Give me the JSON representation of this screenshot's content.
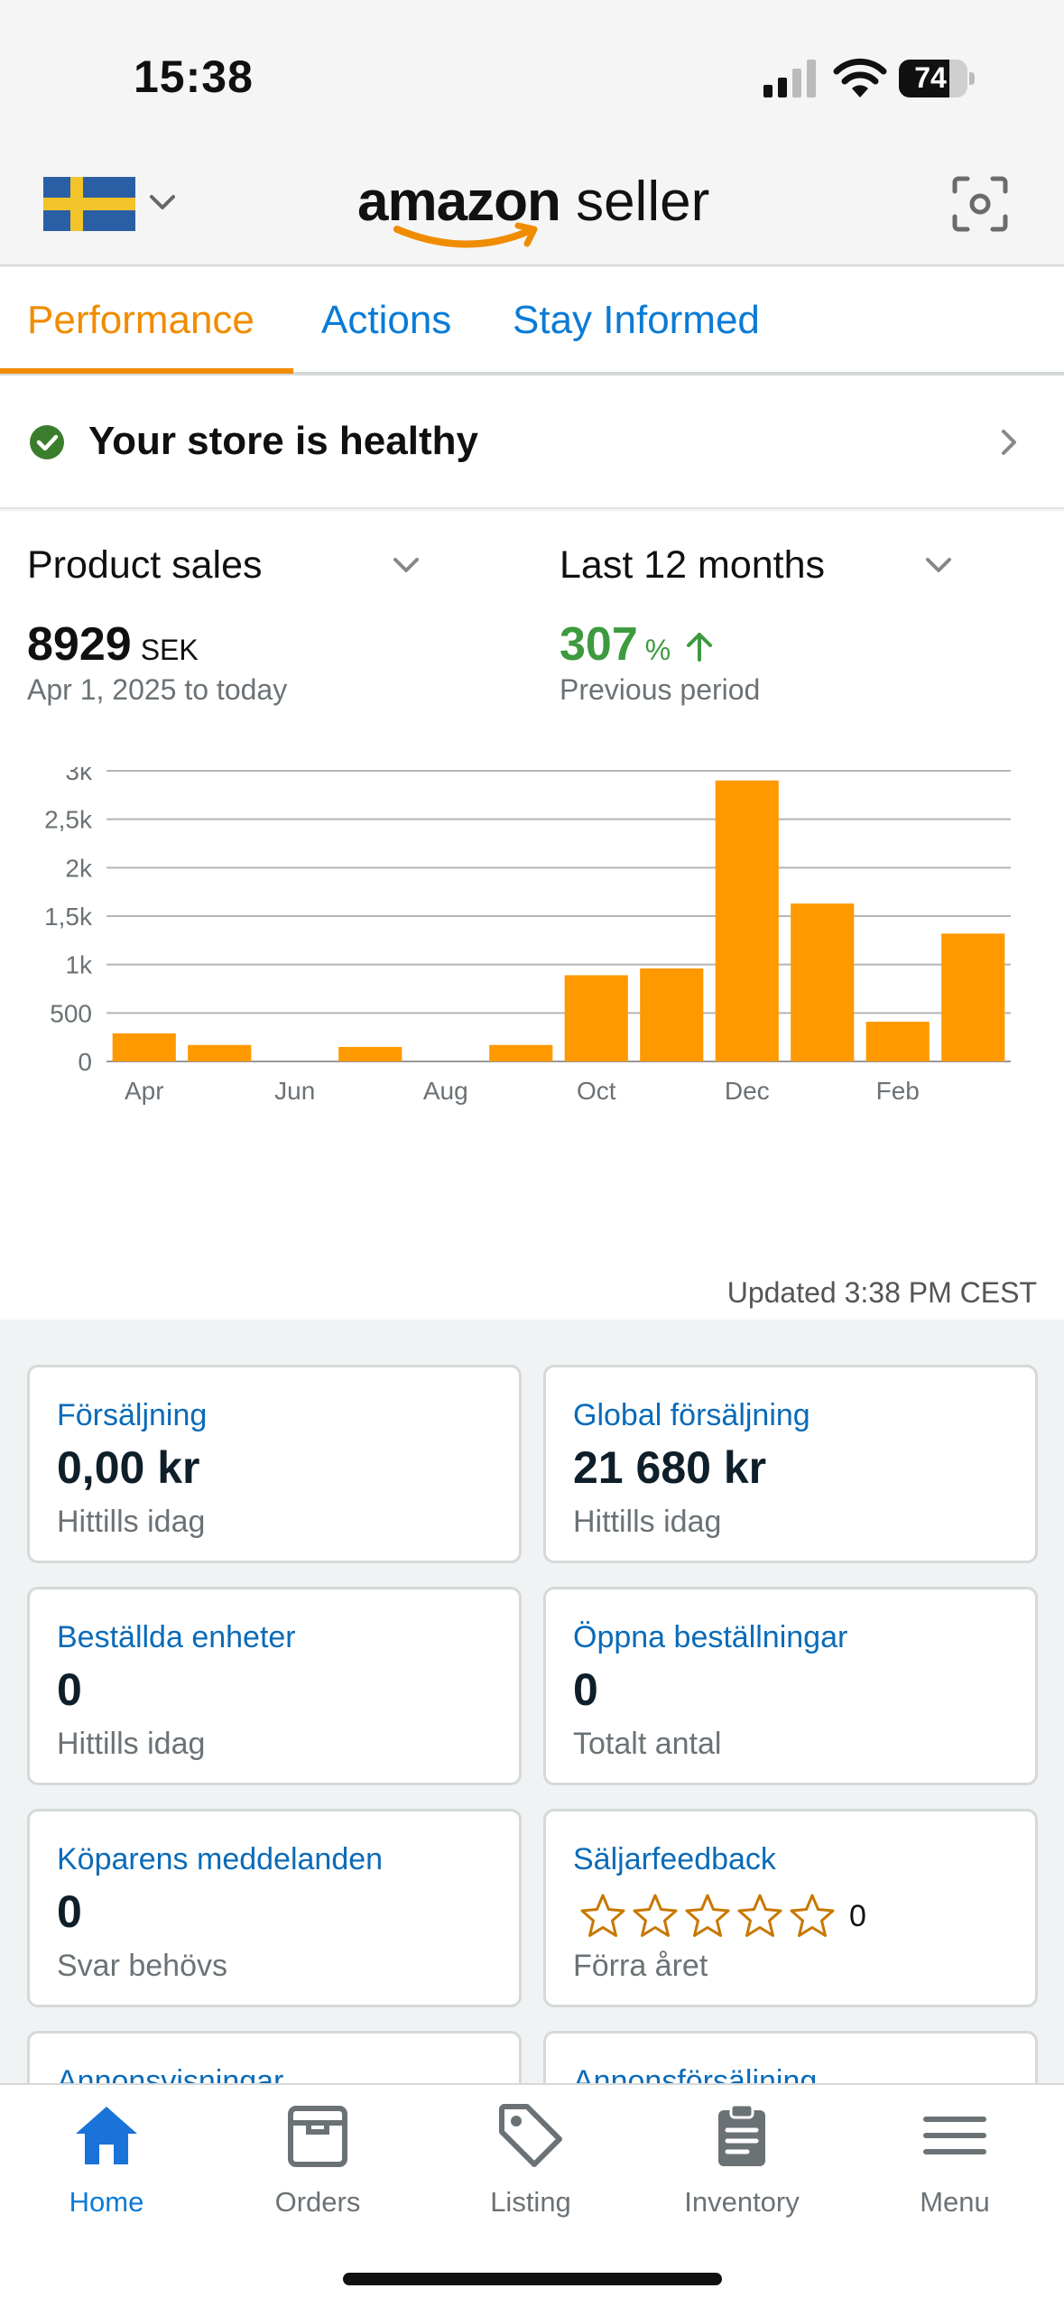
{
  "status_bar": {
    "time": "15:38",
    "battery": "74",
    "battery_level": 0.74
  },
  "header": {
    "logo_bold": "amazon",
    "logo_light": "seller",
    "flag": "sweden-flag"
  },
  "tabs": [
    {
      "label": "Performance",
      "active": true
    },
    {
      "label": "Actions",
      "active": false
    },
    {
      "label": "Stay Informed",
      "active": false
    }
  ],
  "health": {
    "label": "Your store is healthy"
  },
  "sales": {
    "metric_select": "Product sales",
    "period_select": "Last 12 months",
    "total_value": "8929",
    "total_unit": "SEK",
    "date_range": "Apr 1, 2025 to today",
    "change_value": "307",
    "change_unit": "%",
    "change_label": "Previous period",
    "updated": "Updated 3:38 PM CEST"
  },
  "chart_data": {
    "type": "bar",
    "categories": [
      "Apr",
      "May",
      "Jun",
      "Jul",
      "Aug",
      "Sep",
      "Oct",
      "Nov",
      "Dec",
      "Jan",
      "Feb",
      "Mar"
    ],
    "x_tick_labels": [
      "Apr",
      "Jun",
      "Aug",
      "Oct",
      "Dec",
      "Feb"
    ],
    "values": [
      290,
      170,
      0,
      150,
      0,
      170,
      890,
      960,
      2900,
      1630,
      410,
      1320
    ],
    "y_ticks": [
      "0",
      "500",
      "1k",
      "1,5k",
      "2k",
      "2,5k",
      "3k"
    ],
    "ylim": [
      0,
      3000
    ],
    "bar_color": "#ff9900",
    "grid": true
  },
  "cards": [
    {
      "title": "Försäljning",
      "value": "0,00 kr",
      "sub": "Hittills idag"
    },
    {
      "title": "Global försäljning",
      "value": "21 680 kr",
      "sub": "Hittills idag"
    },
    {
      "title": "Beställda enheter",
      "value": "0",
      "sub": "Hittills idag"
    },
    {
      "title": "Öppna beställningar",
      "value": "0",
      "sub": "Totalt antal"
    },
    {
      "title": "Köparens meddelanden",
      "value": "0",
      "sub": "Svar behövs"
    },
    {
      "title": "Säljarfeedback",
      "rating_count": "0",
      "stars": 0,
      "sub": "Förra året"
    },
    {
      "title": "Annonsvisningar"
    },
    {
      "title": "Annonsförsäljning"
    }
  ],
  "bottom_nav": [
    {
      "label": "Home",
      "icon": "home-icon",
      "active": true
    },
    {
      "label": "Orders",
      "icon": "orders-box-icon",
      "active": false
    },
    {
      "label": "Listing",
      "icon": "tag-icon",
      "active": false
    },
    {
      "label": "Inventory",
      "icon": "clipboard-icon",
      "active": false
    },
    {
      "label": "Menu",
      "icon": "hamburger-menu-icon",
      "active": false
    }
  ],
  "colors": {
    "accent": "#f08c00",
    "link": "#0a7bd6",
    "positive": "#3e9a3e"
  }
}
